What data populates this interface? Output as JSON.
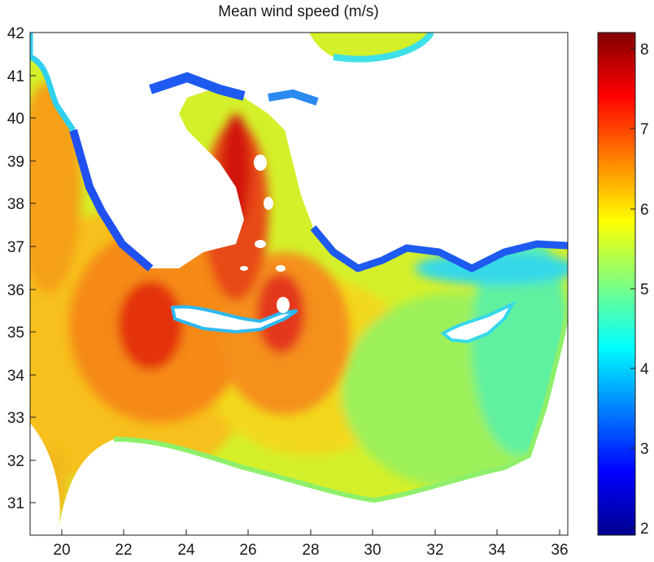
{
  "chart_data": {
    "type": "heatmap",
    "title": "Mean wind speed (m/s)",
    "xlabel": "",
    "ylabel": "",
    "x_ticks": [
      "20",
      "22",
      "24",
      "26",
      "28",
      "30",
      "32",
      "34",
      "36"
    ],
    "y_ticks": [
      "31",
      "32",
      "33",
      "34",
      "35",
      "36",
      "37",
      "38",
      "39",
      "40",
      "41",
      "42"
    ],
    "colorbar_ticks": [
      "2",
      "3",
      "4",
      "5",
      "6",
      "7",
      "8"
    ],
    "xlim": [
      19,
      36.3
    ],
    "ylim": [
      30.2,
      42
    ],
    "color_range": [
      1.9,
      8.2
    ],
    "colormap": "jet",
    "hotspots": [
      {
        "lon": 23.2,
        "lat": 35.1,
        "value": 7.0
      },
      {
        "lon": 25.5,
        "lat": 38.4,
        "value": 7.8
      },
      {
        "lon": 27.3,
        "lat": 35.5,
        "value": 7.0
      },
      {
        "lon": 19.4,
        "lat": 40.2,
        "value": 6.8
      }
    ],
    "background_value": 5.0,
    "land_color": "#ffffff"
  }
}
